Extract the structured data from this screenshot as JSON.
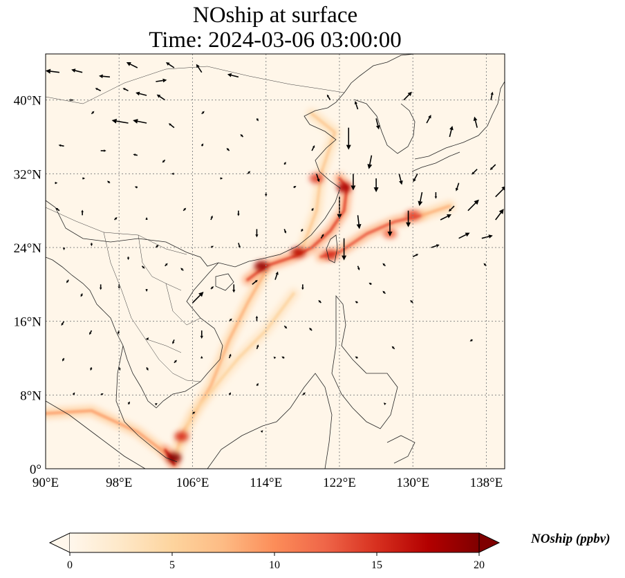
{
  "title_line1": "NOship at surface",
  "title_line2": "Time: 2024-03-06 03:00:00",
  "map": {
    "extent": {
      "lon_min": 90,
      "lon_max": 140,
      "lat_min": 0,
      "lat_max": 45
    },
    "x_ticks": [
      {
        "value": 90,
        "label": "90°E"
      },
      {
        "value": 98,
        "label": "98°E"
      },
      {
        "value": 106,
        "label": "106°E"
      },
      {
        "value": 114,
        "label": "114°E"
      },
      {
        "value": 122,
        "label": "122°E"
      },
      {
        "value": 130,
        "label": "130°E"
      },
      {
        "value": 138,
        "label": "138°E"
      }
    ],
    "y_ticks": [
      {
        "value": 0,
        "label": "0°"
      },
      {
        "value": 8,
        "label": "8°N"
      },
      {
        "value": 16,
        "label": "16°N"
      },
      {
        "value": 24,
        "label": "24°N"
      },
      {
        "value": 32,
        "label": "32°N"
      },
      {
        "value": 40,
        "label": "40°N"
      }
    ],
    "gridlines": true,
    "colormap": "OrRd",
    "colormap_colors": [
      "#fff7ec",
      "#fee8c8",
      "#fdd49e",
      "#fdbb84",
      "#fc8d59",
      "#ef6548",
      "#d7301f",
      "#b30000",
      "#7f0000"
    ],
    "ship_lanes": [
      {
        "path": [
          [
            90,
            6
          ],
          [
            95,
            6.3
          ],
          [
            100,
            4
          ],
          [
            104,
            1
          ]
        ],
        "level": 9
      },
      {
        "path": [
          [
            104,
            1
          ],
          [
            105,
            4
          ],
          [
            108,
            9
          ],
          [
            110,
            14
          ],
          [
            112,
            18
          ],
          [
            114,
            21.5
          ]
        ],
        "level": 8
      },
      {
        "path": [
          [
            104,
            1
          ],
          [
            106,
            6
          ],
          [
            111,
            12
          ],
          [
            114,
            15
          ],
          [
            117,
            19
          ]
        ],
        "level": 5
      },
      {
        "path": [
          [
            112,
            20.5
          ],
          [
            114,
            22
          ],
          [
            117,
            23
          ],
          [
            119,
            24
          ],
          [
            121,
            25.8
          ],
          [
            122.5,
            28
          ],
          [
            122.8,
            30.5
          ],
          [
            122,
            31.5
          ]
        ],
        "level": 14
      },
      {
        "path": [
          [
            120,
            23
          ],
          [
            122,
            23.5
          ],
          [
            125,
            25.5
          ],
          [
            128,
            26.8
          ],
          [
            131,
            27.5
          ]
        ],
        "level": 13
      },
      {
        "path": [
          [
            131,
            27.5
          ],
          [
            134,
            28.5
          ]
        ],
        "level": 8
      },
      {
        "path": [
          [
            118,
            24
          ],
          [
            119.5,
            28
          ],
          [
            120,
            32
          ],
          [
            121.5,
            36.5
          ],
          [
            119,
            38.5
          ]
        ],
        "level": 6
      },
      {
        "path": [
          [
            104,
            1
          ],
          [
            103,
            2
          ],
          [
            104,
            0.5
          ]
        ],
        "level": 16
      }
    ],
    "hotspots": [
      {
        "lon": 104,
        "lat": 1.2,
        "level": 20
      },
      {
        "lon": 104.8,
        "lat": 3.5,
        "level": 15
      },
      {
        "lon": 113.5,
        "lat": 22,
        "level": 19
      },
      {
        "lon": 117.5,
        "lat": 23.5,
        "level": 17
      },
      {
        "lon": 122.5,
        "lat": 30.5,
        "level": 18
      },
      {
        "lon": 119.5,
        "lat": 31.5,
        "level": 14
      },
      {
        "lon": 130,
        "lat": 27.5,
        "level": 14
      },
      {
        "lon": 127.5,
        "lat": 25.5,
        "level": 12
      },
      {
        "lon": 121,
        "lat": 23.2,
        "level": 15
      }
    ],
    "wind_arrows": [
      [
        91.5,
        43,
        -2.5,
        0.3
      ],
      [
        94,
        43,
        -2,
        0.5
      ],
      [
        97,
        42.5,
        -2,
        0.2
      ],
      [
        100,
        43.5,
        -2,
        1
      ],
      [
        102,
        42,
        2,
        0.3
      ],
      [
        104,
        43.5,
        -1.5,
        1
      ],
      [
        107,
        43,
        -1,
        1.5
      ],
      [
        111,
        42.5,
        -2,
        0.5
      ],
      [
        93,
        40,
        -0.8,
        0
      ],
      [
        96,
        41,
        -1,
        0.5
      ],
      [
        99,
        41,
        -1,
        0.5
      ],
      [
        101,
        40.5,
        -2,
        0.5
      ],
      [
        103,
        40,
        -1.5,
        1
      ],
      [
        95,
        38.5,
        0.5,
        0.5
      ],
      [
        99,
        37.5,
        -3,
        0.5
      ],
      [
        101,
        37.5,
        -2.5,
        0.5
      ],
      [
        104,
        37,
        -1,
        0.8
      ],
      [
        107,
        38.5,
        0.5,
        0.5
      ],
      [
        92,
        35,
        -1,
        0.2
      ],
      [
        96,
        34.5,
        1,
        0
      ],
      [
        100,
        34,
        -0.8,
        0.2
      ],
      [
        103,
        33.5,
        -0.5,
        -0.5
      ],
      [
        107,
        35,
        0.3,
        0.5
      ],
      [
        110,
        34.5,
        -0.5,
        0.5
      ],
      [
        91,
        31,
        0.5,
        0
      ],
      [
        94,
        31.5,
        0.5,
        0
      ],
      [
        97,
        31,
        -0.5,
        0.4
      ],
      [
        100,
        30.5,
        -0.5,
        0.2
      ],
      [
        104,
        32,
        -0.5,
        0
      ],
      [
        109,
        31.5,
        0.5,
        0
      ],
      [
        112,
        32,
        0.5,
        0.5
      ],
      [
        91.5,
        28,
        -0.7,
        0.5
      ],
      [
        94,
        27.5,
        0,
        1
      ],
      [
        97.5,
        27,
        0.5,
        0.5
      ],
      [
        101,
        27,
        0,
        0.5
      ],
      [
        105,
        28,
        0.5,
        0.5
      ],
      [
        108,
        27,
        0.3,
        0.8
      ],
      [
        111,
        28,
        0,
        -1
      ],
      [
        114,
        30,
        0,
        -0.8
      ],
      [
        92,
        24,
        0,
        -0.5
      ],
      [
        95,
        24.5,
        0,
        -0.6
      ],
      [
        99,
        23,
        0,
        -0.6
      ],
      [
        102,
        24,
        0.5,
        0.5
      ],
      [
        108,
        24,
        0.5,
        0.3
      ],
      [
        111,
        24.5,
        0.3,
        -1
      ],
      [
        113,
        26,
        0,
        -1.5
      ],
      [
        116,
        26,
        0.3,
        -0.8
      ],
      [
        92.5,
        20.5,
        -0.4,
        -0.6
      ],
      [
        94,
        19,
        -0.3,
        -0.6
      ],
      [
        96,
        20,
        0,
        -1
      ],
      [
        98,
        20,
        0,
        -0.8
      ],
      [
        101,
        19.5,
        0,
        -0.5
      ],
      [
        106,
        18,
        2,
        2
      ],
      [
        108,
        19.5,
        0.5,
        0.5
      ],
      [
        110.5,
        20,
        0,
        -1.5
      ],
      [
        112.5,
        20,
        1,
        0.8
      ],
      [
        115,
        20.5,
        0.5,
        1.5
      ],
      [
        118,
        20,
        0,
        -1
      ],
      [
        92,
        16,
        -0.5,
        -0.8
      ],
      [
        95,
        15,
        -0.4,
        -0.8
      ],
      [
        98,
        15,
        -0.2,
        -0.7
      ],
      [
        101,
        14,
        0.4,
        0.4
      ],
      [
        104,
        14,
        -0.3,
        -0.8
      ],
      [
        107,
        15,
        0,
        -1.5
      ],
      [
        110,
        16,
        0.5,
        0.5
      ],
      [
        113,
        16,
        0,
        1
      ],
      [
        116,
        15.5,
        0.5,
        -0.5
      ],
      [
        119,
        15,
        -0.5,
        0.5
      ],
      [
        92,
        12,
        -0.3,
        -0.6
      ],
      [
        95,
        11,
        -0.2,
        -0.6
      ],
      [
        98,
        11,
        0.2,
        -0.6
      ],
      [
        101,
        11,
        0.3,
        -0.6
      ],
      [
        104,
        11.5,
        0.5,
        0.5
      ],
      [
        107,
        12,
        0,
        0.4
      ],
      [
        110,
        12,
        0.3,
        0.8
      ],
      [
        113,
        13,
        0.3,
        0.8
      ],
      [
        116,
        12,
        -0.5,
        0.3
      ],
      [
        93,
        8,
        0.3,
        0.5
      ],
      [
        96,
        8,
        0.5,
        0.3
      ],
      [
        99,
        7,
        0.3,
        0.5
      ],
      [
        102,
        7,
        0.3,
        0.2
      ],
      [
        106,
        6,
        0.5,
        0.3
      ],
      [
        110,
        8,
        0.3,
        0.5
      ],
      [
        113,
        9,
        0.3,
        0.5
      ],
      [
        118,
        8,
        0.5,
        0.5
      ],
      [
        120,
        18,
        -0.5,
        0.5
      ],
      [
        124,
        18,
        -0.5,
        0.3
      ],
      [
        127,
        19,
        -0.5,
        0.5
      ],
      [
        130,
        18,
        -0.5,
        0.5
      ],
      [
        124,
        12,
        -0.5,
        0.3
      ],
      [
        128,
        13,
        -0.5,
        0.5
      ],
      [
        136.5,
        14,
        -0.5,
        -0.3
      ],
      [
        125.5,
        20,
        -0.5,
        0.3
      ],
      [
        121,
        40,
        -0.6,
        1
      ],
      [
        124,
        39,
        -0.5,
        1.5
      ],
      [
        126,
        38,
        0.5,
        -2
      ],
      [
        129,
        40,
        1.5,
        1.5
      ],
      [
        131.5,
        37.5,
        0.8,
        1.5
      ],
      [
        134,
        36,
        0.5,
        2
      ],
      [
        137,
        37,
        -0.5,
        2
      ],
      [
        138.5,
        40,
        0.3,
        1.5
      ],
      [
        139,
        33,
        -1,
        -1
      ],
      [
        137,
        32.5,
        -1,
        -1
      ],
      [
        135,
        31,
        -0.5,
        -1.5
      ],
      [
        123,
        37,
        0,
        -4
      ],
      [
        125.5,
        34,
        -0.5,
        -2.5
      ],
      [
        123.5,
        32,
        0,
        -3
      ],
      [
        122,
        29.5,
        0,
        -4
      ],
      [
        124,
        27.5,
        0.3,
        -2.5
      ],
      [
        127.5,
        27,
        0,
        -3
      ],
      [
        129.5,
        28,
        0,
        -3
      ],
      [
        131,
        30,
        -0.5,
        -2.5
      ],
      [
        126,
        31.5,
        0,
        -2.5
      ],
      [
        128.5,
        32,
        0.5,
        -2
      ],
      [
        130.5,
        32,
        -0.8,
        -1.5
      ],
      [
        132.5,
        30,
        0,
        -1.2
      ],
      [
        134.5,
        28.5,
        -1,
        -1
      ],
      [
        136,
        28,
        2,
        2
      ],
      [
        139,
        29.5,
        2,
        2
      ],
      [
        139,
        27,
        1.5,
        2
      ],
      [
        133,
        27,
        2,
        1
      ],
      [
        135,
        25,
        2,
        1
      ],
      [
        137.5,
        25,
        2,
        0.5
      ],
      [
        138,
        22,
        -0.5,
        0.5
      ],
      [
        132,
        24,
        1.5,
        0.5
      ],
      [
        130,
        23,
        1,
        0.5
      ],
      [
        127,
        22,
        -0.5,
        0.5
      ],
      [
        124,
        22,
        0.3,
        -0.8
      ],
      [
        122.5,
        25,
        0,
        -4
      ],
      [
        120,
        25,
        0.5,
        0.8
      ],
      [
        118,
        26,
        -0.3,
        -0.5
      ],
      [
        119,
        28,
        0.3,
        0.5
      ],
      [
        117,
        30.5,
        0.5,
        0.3
      ],
      [
        119.5,
        32,
        0.5,
        -1.5
      ],
      [
        116,
        33,
        0.3,
        0.5
      ],
      [
        111.5,
        36,
        -0.5,
        0.5
      ],
      [
        113,
        38,
        0.3,
        -0.5
      ],
      [
        119,
        34.5,
        0.5,
        1
      ],
      [
        103,
        22,
        0.5,
        0.5
      ],
      [
        105,
        21.5,
        -0.5,
        0.5
      ],
      [
        100.5,
        22,
        0.5,
        -0.5
      ],
      [
        115,
        12,
        -0.3,
        0.3
      ],
      [
        113.5,
        4,
        0.3,
        0.3
      ],
      [
        127,
        7,
        -0.3,
        0.3
      ]
    ]
  },
  "colorbar": {
    "label": "NOship (ppbv)",
    "min": 0,
    "max": 20,
    "ticks": [
      {
        "value": 0,
        "label": "0"
      },
      {
        "value": 5,
        "label": "5"
      },
      {
        "value": 10,
        "label": "10"
      },
      {
        "value": 15,
        "label": "15"
      },
      {
        "value": 20,
        "label": "20"
      }
    ],
    "extend": "both"
  }
}
